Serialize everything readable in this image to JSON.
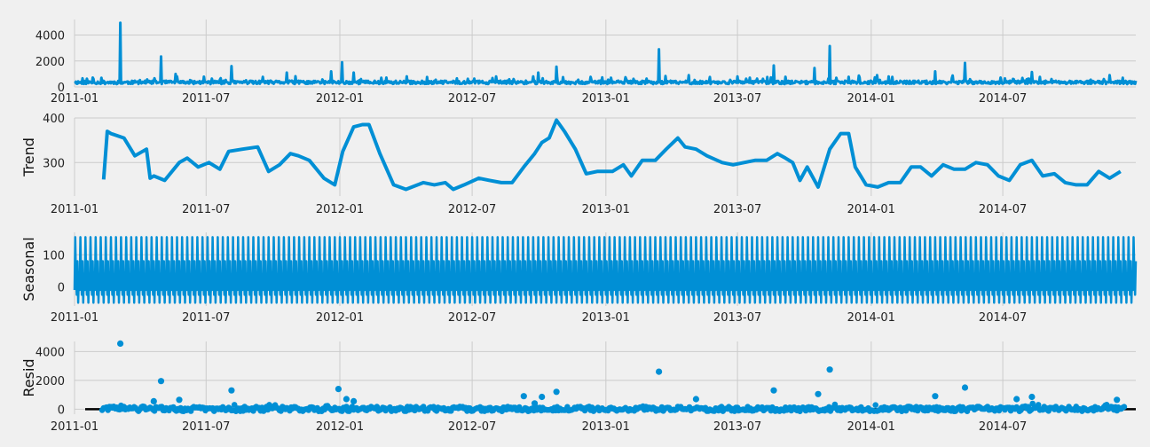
{
  "chart_data": [
    {
      "type": "line",
      "ylabel": "",
      "xlim": [
        "2011-01-01",
        "2014-12-31"
      ],
      "ylim": [
        0,
        5200
      ],
      "yticks": [
        0,
        2000,
        4000
      ],
      "xticks": [
        "2011-01",
        "2011-07",
        "2012-01",
        "2012-07",
        "2013-01",
        "2013-07",
        "2014-01",
        "2014-07"
      ],
      "grid": true,
      "color": "#008fd5",
      "baseline": 350,
      "spikes": [
        {
          "x": "2011-03-05",
          "y": 4950
        },
        {
          "x": "2011-04-30",
          "y": 2350
        },
        {
          "x": "2011-05-20",
          "y": 1000
        },
        {
          "x": "2011-08-05",
          "y": 1600
        },
        {
          "x": "2011-10-20",
          "y": 1100
        },
        {
          "x": "2011-12-20",
          "y": 1200
        },
        {
          "x": "2012-01-04",
          "y": 1900
        },
        {
          "x": "2012-01-20",
          "y": 1100
        },
        {
          "x": "2012-09-30",
          "y": 1100
        },
        {
          "x": "2012-10-25",
          "y": 1550
        },
        {
          "x": "2013-03-15",
          "y": 2900
        },
        {
          "x": "2013-04-25",
          "y": 900
        },
        {
          "x": "2013-08-20",
          "y": 1650
        },
        {
          "x": "2013-10-15",
          "y": 1450
        },
        {
          "x": "2013-11-05",
          "y": 3150
        },
        {
          "x": "2014-01-25",
          "y": 800
        },
        {
          "x": "2014-03-30",
          "y": 1200
        },
        {
          "x": "2014-05-10",
          "y": 1850
        },
        {
          "x": "2014-08-10",
          "y": 1150
        },
        {
          "x": "2014-11-25",
          "y": 900
        }
      ]
    },
    {
      "type": "line",
      "ylabel": "Trend",
      "xlim": [
        "2011-01-01",
        "2014-12-31"
      ],
      "ylim": [
        225,
        400
      ],
      "yticks": [
        300,
        400
      ],
      "xticks": [
        "2011-01",
        "2011-07",
        "2012-01",
        "2012-07",
        "2013-01",
        "2013-07",
        "2014-01",
        "2014-07"
      ],
      "grid": true,
      "color": "#008fd5",
      "x": [
        "2011-02-10",
        "2011-02-15",
        "2011-02-20",
        "2011-03-10",
        "2011-03-25",
        "2011-04-10",
        "2011-04-15",
        "2011-04-20",
        "2011-05-05",
        "2011-05-25",
        "2011-06-05",
        "2011-06-20",
        "2011-07-05",
        "2011-07-20",
        "2011-08-01",
        "2011-08-20",
        "2011-09-10",
        "2011-09-25",
        "2011-10-10",
        "2011-10-25",
        "2011-11-05",
        "2011-11-20",
        "2011-12-10",
        "2011-12-25",
        "2012-01-05",
        "2012-01-20",
        "2012-02-01",
        "2012-02-10",
        "2012-02-25",
        "2012-03-15",
        "2012-04-01",
        "2012-04-25",
        "2012-05-10",
        "2012-05-25",
        "2012-06-05",
        "2012-06-20",
        "2012-07-10",
        "2012-07-25",
        "2012-08-10",
        "2012-08-25",
        "2012-09-10",
        "2012-09-25",
        "2012-10-05",
        "2012-10-15",
        "2012-10-25",
        "2012-11-05",
        "2012-11-20",
        "2012-12-05",
        "2012-12-20",
        "2013-01-10",
        "2013-01-25",
        "2013-02-05",
        "2013-02-20",
        "2013-03-10",
        "2013-03-25",
        "2013-04-10",
        "2013-04-20",
        "2013-05-05",
        "2013-05-20",
        "2013-06-10",
        "2013-06-25",
        "2013-07-10",
        "2013-07-25",
        "2013-08-10",
        "2013-08-25",
        "2013-09-05",
        "2013-09-15",
        "2013-09-25",
        "2013-10-05",
        "2013-10-20",
        "2013-11-05",
        "2013-11-20",
        "2013-12-01",
        "2013-12-10",
        "2013-12-25",
        "2014-01-10",
        "2014-01-25",
        "2014-02-10",
        "2014-02-25",
        "2014-03-10",
        "2014-03-25",
        "2014-04-10",
        "2014-04-25",
        "2014-05-10",
        "2014-05-25",
        "2014-06-10",
        "2014-06-25",
        "2014-07-10",
        "2014-07-25",
        "2014-08-10",
        "2014-08-25",
        "2014-09-10",
        "2014-09-25",
        "2014-10-10",
        "2014-10-25",
        "2014-11-10",
        "2014-11-25",
        "2014-12-10"
      ],
      "y": [
        262,
        370,
        365,
        355,
        315,
        330,
        265,
        270,
        260,
        300,
        310,
        290,
        300,
        285,
        325,
        330,
        335,
        280,
        295,
        320,
        315,
        305,
        265,
        250,
        325,
        380,
        385,
        385,
        320,
        250,
        240,
        255,
        250,
        255,
        240,
        250,
        265,
        260,
        255,
        255,
        290,
        320,
        345,
        355,
        395,
        370,
        330,
        275,
        280,
        280,
        295,
        270,
        305,
        305,
        330,
        355,
        335,
        330,
        315,
        300,
        295,
        300,
        305,
        305,
        320,
        310,
        300,
        260,
        290,
        245,
        330,
        365,
        365,
        290,
        250,
        245,
        255,
        255,
        290,
        290,
        270,
        295,
        285,
        285,
        300,
        295,
        270,
        260,
        295,
        305,
        270,
        275,
        255,
        250,
        250,
        280,
        265,
        280
      ]
    },
    {
      "type": "line",
      "ylabel": "Seasonal",
      "xlim": [
        "2011-01-01",
        "2014-12-31"
      ],
      "ylim": [
        -60,
        170
      ],
      "yticks": [
        0,
        100
      ],
      "xticks": [
        "2011-01",
        "2011-07",
        "2012-01",
        "2012-07",
        "2013-01",
        "2013-07",
        "2014-01",
        "2014-07"
      ],
      "grid": true,
      "color": "#008fd5",
      "period_days": 7,
      "pattern": [
        -10,
        155,
        30,
        -25,
        80,
        -50,
        40
      ]
    },
    {
      "type": "scatter",
      "ylabel": "Resid",
      "xlim": [
        "2011-01-01",
        "2014-12-31"
      ],
      "ylim": [
        -350,
        4700
      ],
      "yticks": [
        0,
        2000,
        4000
      ],
      "xticks": [
        "2011-01",
        "2011-07",
        "2012-01",
        "2012-07",
        "2013-01",
        "2013-07",
        "2014-01",
        "2014-07"
      ],
      "grid": true,
      "color": "#008fd5",
      "outliers": [
        {
          "x": "2011-03-05",
          "y": 4550
        },
        {
          "x": "2011-04-30",
          "y": 1950
        },
        {
          "x": "2011-04-20",
          "y": 550
        },
        {
          "x": "2011-05-25",
          "y": 650
        },
        {
          "x": "2011-08-05",
          "y": 1300
        },
        {
          "x": "2011-12-30",
          "y": 1400
        },
        {
          "x": "2012-01-10",
          "y": 700
        },
        {
          "x": "2012-01-20",
          "y": 550
        },
        {
          "x": "2012-09-10",
          "y": 900
        },
        {
          "x": "2012-09-25",
          "y": 400
        },
        {
          "x": "2012-10-05",
          "y": 850
        },
        {
          "x": "2012-10-25",
          "y": 1200
        },
        {
          "x": "2013-03-15",
          "y": 2600
        },
        {
          "x": "2013-05-05",
          "y": 700
        },
        {
          "x": "2013-08-20",
          "y": 1300
        },
        {
          "x": "2013-10-20",
          "y": 1050
        },
        {
          "x": "2013-11-05",
          "y": 2750
        },
        {
          "x": "2014-03-30",
          "y": 900
        },
        {
          "x": "2014-05-10",
          "y": 1500
        },
        {
          "x": "2014-07-20",
          "y": 700
        },
        {
          "x": "2014-08-10",
          "y": 850
        },
        {
          "x": "2014-12-05",
          "y": 650
        }
      ]
    }
  ]
}
